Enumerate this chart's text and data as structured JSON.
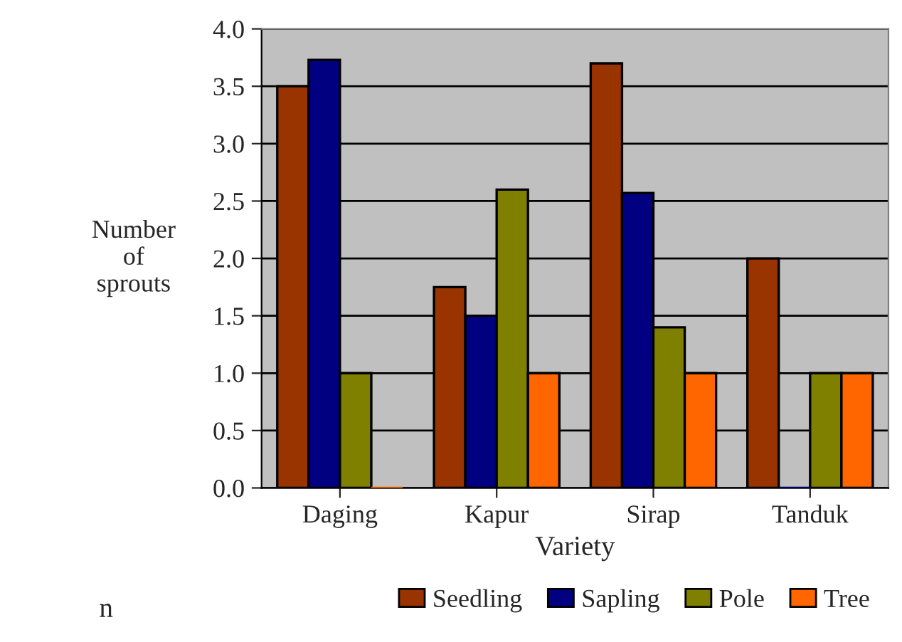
{
  "chart_data": {
    "type": "bar",
    "xlabel": "Variety",
    "ylabel": "Number\nof\nsprouts",
    "categories": [
      "Daging",
      "Kapur",
      "Sirap",
      "Tanduk"
    ],
    "series": [
      {
        "name": "Seedling",
        "color": "#993300",
        "values": [
          3.5,
          1.75,
          3.7,
          2.0
        ]
      },
      {
        "name": "Sapling",
        "color": "#000080",
        "values": [
          3.73,
          1.5,
          2.57,
          0
        ]
      },
      {
        "name": "Pole",
        "color": "#808000",
        "values": [
          1.0,
          2.6,
          1.4,
          1.0
        ]
      },
      {
        "name": "Tree",
        "color": "#ff6600",
        "values": [
          0,
          1.0,
          1.0,
          1.0
        ]
      }
    ],
    "ylim": [
      0.0,
      4.0
    ],
    "yticks": [
      {
        "value": 0,
        "label": "0.0"
      },
      0.5,
      {
        "value": 1,
        "label": "1.0"
      },
      1.5,
      {
        "value": 2,
        "label": "2.0"
      },
      2.5,
      {
        "value": 3,
        "label": "3.0"
      },
      3.5,
      {
        "value": 4,
        "label": "4.0"
      }
    ],
    "grid": "y",
    "legend": "bottom right",
    "annotations": [
      "n"
    ]
  }
}
